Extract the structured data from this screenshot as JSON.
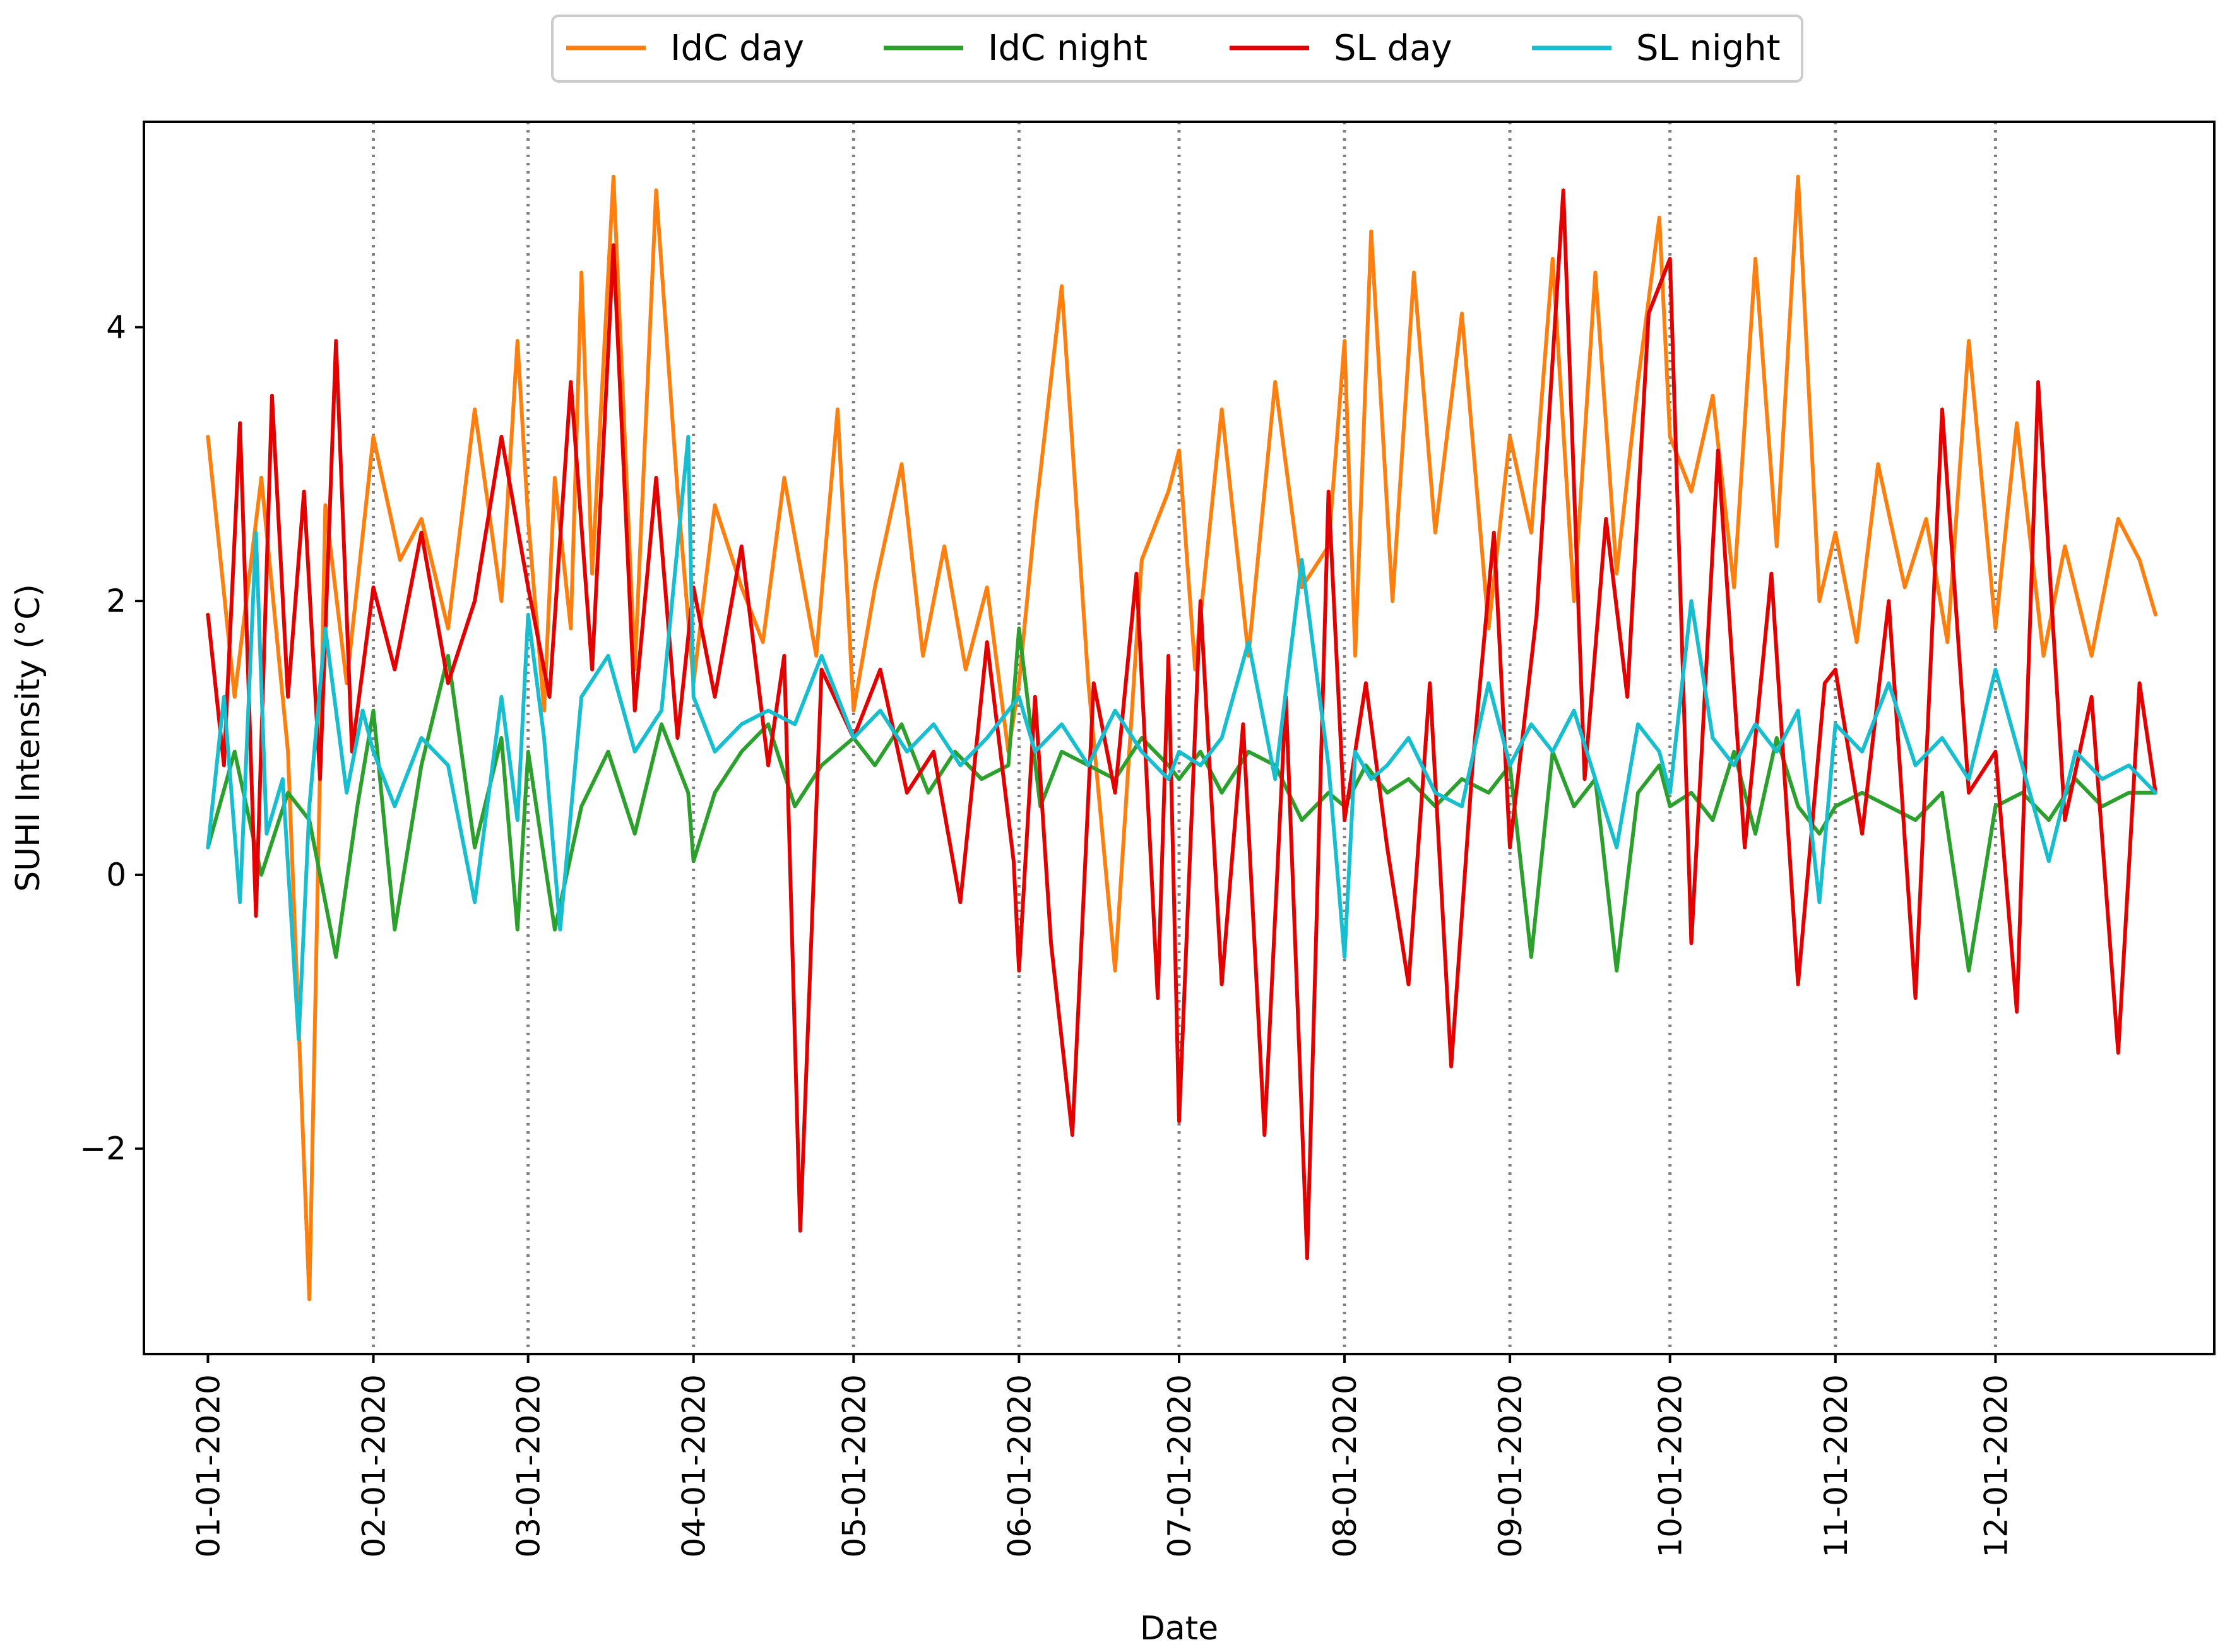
{
  "chart_data": {
    "type": "line",
    "title": "",
    "xlabel": "Date",
    "ylabel": "SUHI Intensity (°C)",
    "ylim": [
      -3.5,
      5.5
    ],
    "yticks": [
      -2,
      0,
      2,
      4
    ],
    "ytick_labels": [
      "−2",
      "0",
      "2",
      "4"
    ],
    "x_day_range": [
      -12,
      376
    ],
    "month_ticks": [
      {
        "label": "01-01-2020",
        "day": 0
      },
      {
        "label": "02-01-2020",
        "day": 31
      },
      {
        "label": "03-01-2020",
        "day": 60
      },
      {
        "label": "04-01-2020",
        "day": 91
      },
      {
        "label": "05-01-2020",
        "day": 121
      },
      {
        "label": "06-01-2020",
        "day": 152
      },
      {
        "label": "07-01-2020",
        "day": 182
      },
      {
        "label": "08-01-2020",
        "day": 213
      },
      {
        "label": "09-01-2020",
        "day": 244
      },
      {
        "label": "10-01-2020",
        "day": 274
      },
      {
        "label": "11-01-2020",
        "day": 305
      },
      {
        "label": "12-01-2020",
        "day": 335
      }
    ],
    "vlines_days": [
      31,
      60,
      91,
      121,
      152,
      182,
      213,
      244,
      274,
      305,
      335
    ],
    "grid": false,
    "legend_position": "top-center",
    "series": [
      {
        "name": "IdC day",
        "color": "#ff7f0e",
        "days": [
          0,
          5,
          10,
          15,
          19,
          22,
          26,
          31,
          36,
          40,
          45,
          50,
          55,
          58,
          60,
          63,
          65,
          68,
          70,
          72,
          76,
          80,
          84,
          88,
          91,
          95,
          100,
          104,
          108,
          114,
          118,
          121,
          125,
          130,
          134,
          138,
          142,
          146,
          150,
          152,
          155,
          160,
          165,
          170,
          175,
          180,
          182,
          185,
          190,
          195,
          200,
          205,
          210,
          213,
          215,
          218,
          222,
          226,
          230,
          235,
          240,
          244,
          248,
          252,
          256,
          260,
          264,
          268,
          272,
          274,
          278,
          282,
          286,
          290,
          294,
          298,
          302,
          305,
          309,
          313,
          318,
          322,
          326,
          330,
          335,
          339,
          344,
          348,
          353,
          358,
          362,
          365
        ],
        "values": [
          3.2,
          1.3,
          2.9,
          0.9,
          -3.1,
          2.7,
          1.4,
          3.2,
          2.3,
          2.6,
          1.8,
          3.4,
          2.0,
          3.9,
          2.6,
          1.2,
          2.9,
          1.8,
          4.4,
          2.2,
          5.1,
          1.5,
          5.0,
          2.8,
          1.4,
          2.7,
          2.1,
          1.7,
          2.9,
          1.6,
          3.4,
          1.2,
          2.1,
          3.0,
          1.6,
          2.4,
          1.5,
          2.1,
          0.9,
          1.4,
          2.6,
          4.3,
          1.4,
          -0.7,
          2.3,
          2.8,
          3.1,
          1.5,
          3.4,
          1.6,
          3.6,
          2.1,
          2.4,
          3.9,
          1.6,
          4.7,
          2.0,
          4.4,
          2.5,
          4.1,
          1.8,
          3.2,
          2.5,
          4.5,
          2.0,
          4.4,
          2.2,
          3.6,
          4.8,
          3.2,
          2.8,
          3.5,
          2.1,
          4.5,
          2.4,
          5.1,
          2.0,
          2.5,
          1.7,
          3.0,
          2.1,
          2.6,
          1.7,
          3.9,
          1.8,
          3.3,
          1.6,
          2.4,
          1.6,
          2.6,
          2.3,
          1.9
        ]
      },
      {
        "name": "IdC night",
        "color": "#2ca02c",
        "days": [
          0,
          5,
          10,
          15,
          19,
          24,
          28,
          31,
          35,
          40,
          45,
          50,
          55,
          58,
          60,
          65,
          70,
          75,
          80,
          85,
          90,
          91,
          95,
          100,
          105,
          110,
          115,
          121,
          125,
          130,
          135,
          140,
          145,
          150,
          152,
          156,
          160,
          165,
          170,
          175,
          180,
          182,
          186,
          190,
          195,
          200,
          205,
          210,
          213,
          217,
          221,
          225,
          230,
          235,
          240,
          244,
          248,
          252,
          256,
          260,
          264,
          268,
          272,
          274,
          278,
          282,
          286,
          290,
          294,
          298,
          302,
          305,
          310,
          315,
          320,
          325,
          330,
          335,
          340,
          345,
          350,
          355,
          360,
          365
        ],
        "values": [
          0.2,
          0.9,
          0.0,
          0.6,
          0.4,
          -0.6,
          0.5,
          1.2,
          -0.4,
          0.8,
          1.6,
          0.2,
          1.0,
          -0.4,
          0.9,
          -0.4,
          0.5,
          0.9,
          0.3,
          1.1,
          0.6,
          0.1,
          0.6,
          0.9,
          1.1,
          0.5,
          0.8,
          1.0,
          0.8,
          1.1,
          0.6,
          0.9,
          0.7,
          0.8,
          1.8,
          0.5,
          0.9,
          0.8,
          0.7,
          1.0,
          0.8,
          0.7,
          0.9,
          0.6,
          0.9,
          0.8,
          0.4,
          0.6,
          0.5,
          0.8,
          0.6,
          0.7,
          0.5,
          0.7,
          0.6,
          0.8,
          -0.6,
          0.9,
          0.5,
          0.7,
          -0.7,
          0.6,
          0.8,
          0.5,
          0.6,
          0.4,
          0.9,
          0.3,
          1.0,
          0.5,
          0.3,
          0.5,
          0.6,
          0.5,
          0.4,
          0.6,
          -0.7,
          0.5,
          0.6,
          0.4,
          0.7,
          0.5,
          0.6,
          0.6
        ]
      },
      {
        "name": "SL day",
        "color": "#e50000",
        "days": [
          0,
          3,
          6,
          9,
          12,
          15,
          18,
          21,
          24,
          27,
          31,
          35,
          40,
          45,
          50,
          55,
          60,
          64,
          68,
          72,
          76,
          80,
          84,
          88,
          91,
          95,
          100,
          105,
          108,
          111,
          115,
          121,
          126,
          131,
          136,
          141,
          146,
          151,
          152,
          155,
          158,
          162,
          166,
          170,
          174,
          178,
          180,
          182,
          186,
          190,
          194,
          198,
          202,
          206,
          210,
          213,
          217,
          221,
          225,
          229,
          233,
          237,
          241,
          244,
          249,
          254,
          258,
          262,
          266,
          270,
          274,
          278,
          283,
          288,
          293,
          298,
          303,
          305,
          310,
          315,
          320,
          325,
          330,
          335,
          339,
          343,
          348,
          353,
          358,
          362,
          365
        ],
        "values": [
          1.9,
          0.8,
          3.3,
          -0.3,
          3.5,
          1.3,
          2.8,
          0.7,
          3.9,
          0.9,
          2.1,
          1.5,
          2.5,
          1.4,
          2.0,
          3.2,
          2.1,
          1.3,
          3.6,
          1.5,
          4.6,
          1.2,
          2.9,
          1.0,
          2.1,
          1.3,
          2.4,
          0.8,
          1.6,
          -2.6,
          1.5,
          1.0,
          1.5,
          0.6,
          0.9,
          -0.2,
          1.7,
          0.1,
          -0.7,
          1.3,
          -0.5,
          -1.9,
          1.4,
          0.6,
          2.2,
          -0.9,
          1.6,
          -1.8,
          2.0,
          -0.8,
          1.1,
          -1.9,
          1.3,
          -2.8,
          2.8,
          0.4,
          1.4,
          0.2,
          -0.8,
          1.4,
          -1.4,
          0.8,
          2.5,
          0.2,
          1.9,
          5.0,
          0.7,
          2.6,
          1.3,
          4.1,
          4.5,
          -0.5,
          3.1,
          0.2,
          2.2,
          -0.8,
          1.4,
          1.5,
          0.3,
          2.0,
          -0.9,
          3.4,
          0.6,
          0.9,
          -1.0,
          3.6,
          0.4,
          1.3,
          -1.3,
          1.4,
          0.6
        ]
      },
      {
        "name": "SL night",
        "color": "#17becf",
        "days": [
          0,
          3,
          6,
          9,
          11,
          14,
          17,
          19,
          22,
          26,
          29,
          31,
          35,
          40,
          45,
          50,
          55,
          58,
          60,
          63,
          66,
          70,
          75,
          80,
          85,
          90,
          91,
          95,
          100,
          105,
          110,
          115,
          121,
          126,
          131,
          136,
          141,
          146,
          150,
          152,
          155,
          160,
          165,
          170,
          175,
          180,
          182,
          186,
          190,
          195,
          200,
          205,
          210,
          213,
          215,
          218,
          221,
          225,
          230,
          235,
          240,
          244,
          248,
          252,
          256,
          260,
          264,
          268,
          272,
          274,
          278,
          282,
          286,
          290,
          294,
          298,
          302,
          305,
          310,
          315,
          320,
          325,
          330,
          335,
          340,
          345,
          350,
          355,
          360,
          365
        ],
        "values": [
          0.2,
          1.3,
          -0.2,
          2.5,
          0.3,
          0.7,
          -1.2,
          0.5,
          1.8,
          0.6,
          1.2,
          0.9,
          0.5,
          1.0,
          0.8,
          -0.2,
          1.3,
          0.4,
          1.9,
          1.0,
          -0.4,
          1.3,
          1.6,
          0.9,
          1.2,
          3.2,
          1.3,
          0.9,
          1.1,
          1.2,
          1.1,
          1.6,
          1.0,
          1.2,
          0.9,
          1.1,
          0.8,
          1.0,
          1.2,
          1.3,
          0.9,
          1.1,
          0.8,
          1.2,
          0.9,
          0.7,
          0.9,
          0.8,
          1.0,
          1.7,
          0.7,
          2.3,
          0.8,
          -0.6,
          0.9,
          0.7,
          0.8,
          1.0,
          0.6,
          0.5,
          1.4,
          0.8,
          1.1,
          0.9,
          1.2,
          0.7,
          0.2,
          1.1,
          0.9,
          0.6,
          2.0,
          1.0,
          0.8,
          1.1,
          0.9,
          1.2,
          -0.2,
          1.1,
          0.9,
          1.4,
          0.8,
          1.0,
          0.7,
          1.5,
          0.8,
          0.1,
          0.9,
          0.7,
          0.8,
          0.6
        ]
      }
    ]
  }
}
